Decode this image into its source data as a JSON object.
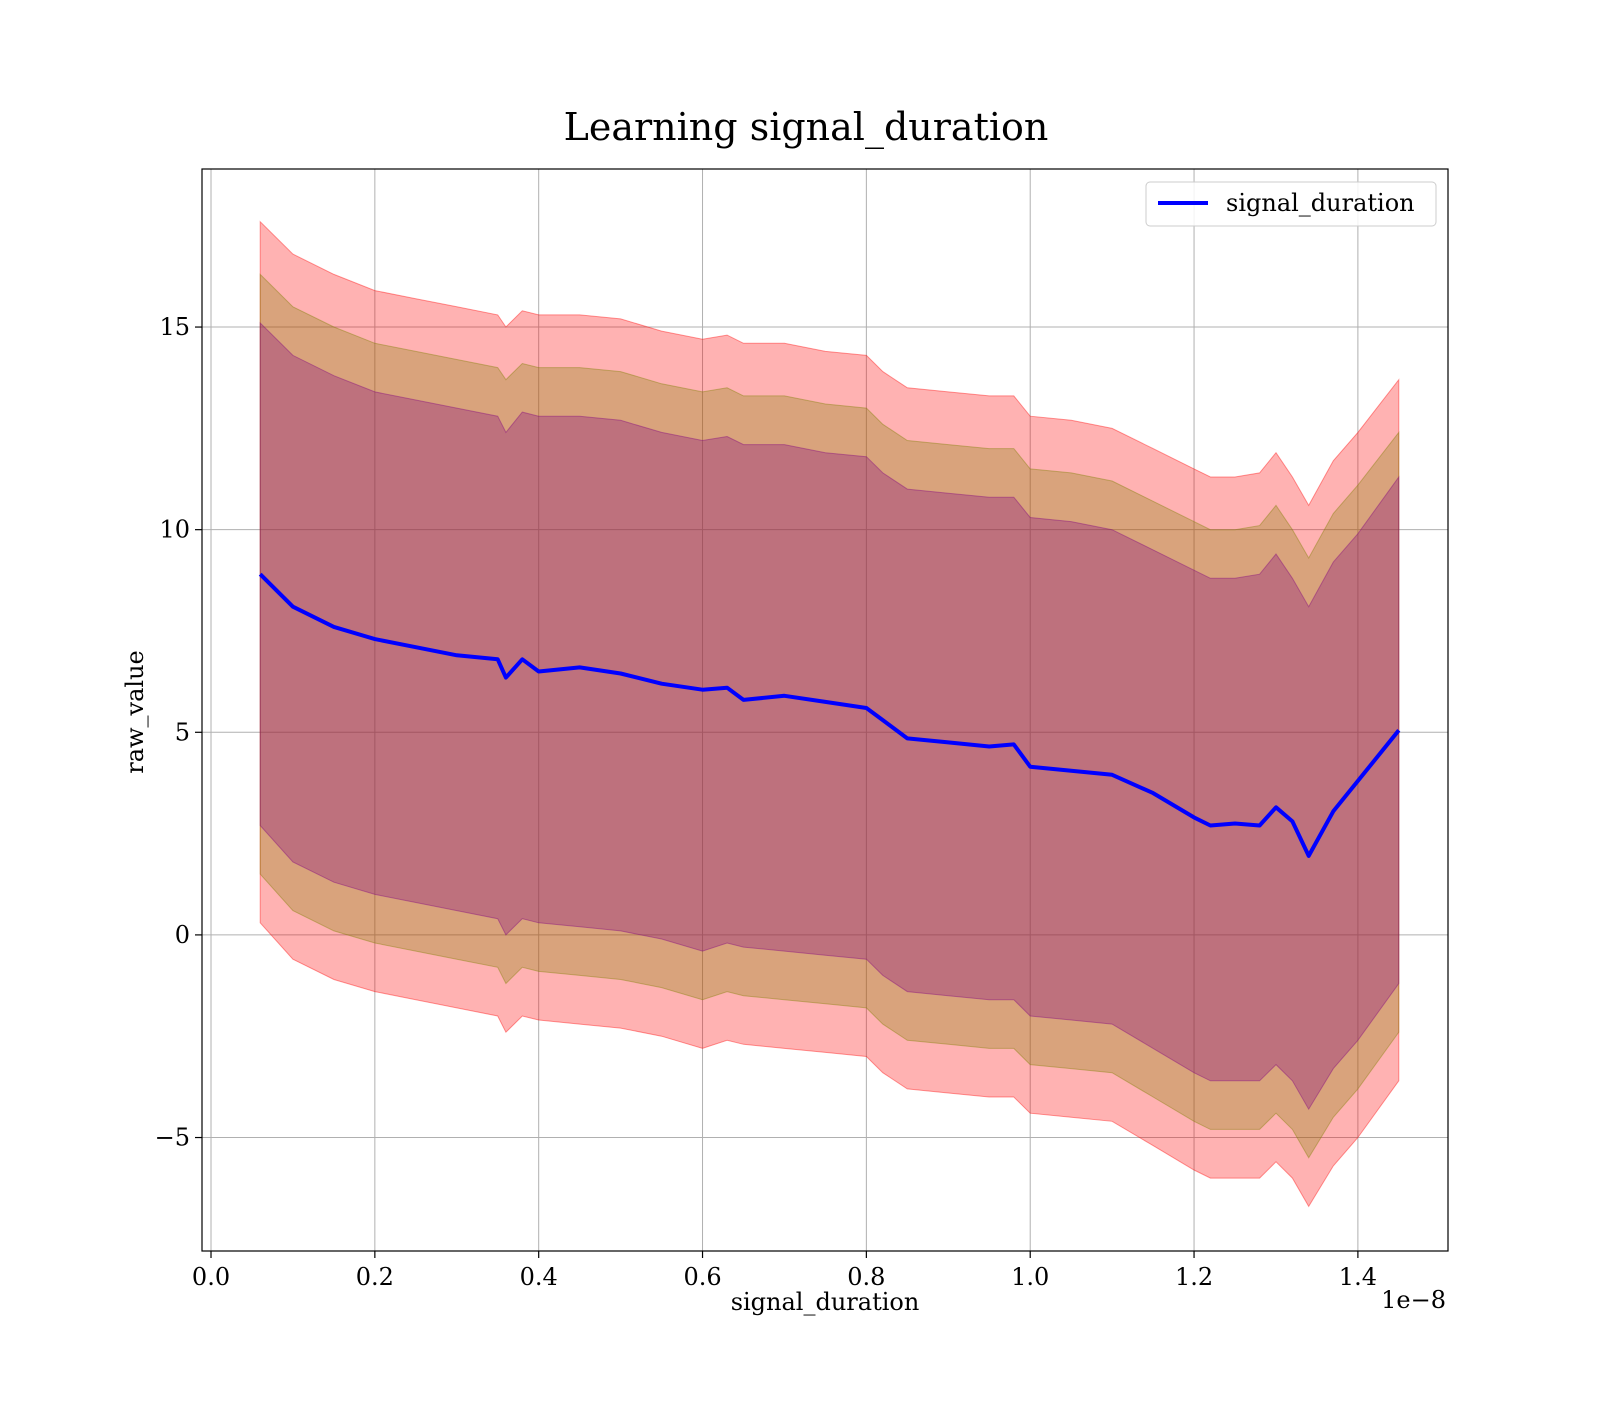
{
  "chart_data": {
    "type": "line",
    "title": "Learning signal_duration",
    "xlabel": "signal_duration",
    "ylabel": "raw_value",
    "x_offset_label": "1e−8",
    "xlim": [
      -0.011,
      1.51
    ],
    "ylim": [
      -7.8,
      18.9
    ],
    "x_ticks": [
      0.0,
      0.2,
      0.4,
      0.6,
      0.8,
      1.0,
      1.2,
      1.4
    ],
    "x_tick_labels": [
      "0.0",
      "0.2",
      "0.4",
      "0.6",
      "0.8",
      "1.0",
      "1.2",
      "1.4"
    ],
    "y_ticks": [
      -5,
      0,
      5,
      10,
      15
    ],
    "y_tick_labels": [
      "−5",
      "0",
      "5",
      "10",
      "15"
    ],
    "grid": true,
    "legend": {
      "position": "top-right",
      "entries": [
        "signal_duration"
      ]
    },
    "colors": {
      "line": "#0000ff",
      "band_outer": "#ff0000",
      "band_middle": "#808000",
      "band_inner": "#800080",
      "grid": "#b0b0b0"
    },
    "x": [
      0.06,
      0.1,
      0.15,
      0.2,
      0.25,
      0.3,
      0.35,
      0.36,
      0.38,
      0.4,
      0.45,
      0.5,
      0.55,
      0.6,
      0.63,
      0.65,
      0.7,
      0.75,
      0.8,
      0.82,
      0.85,
      0.9,
      0.95,
      0.98,
      1.0,
      1.05,
      1.1,
      1.15,
      1.2,
      1.22,
      1.25,
      1.28,
      1.3,
      1.32,
      1.34,
      1.37,
      1.4,
      1.45
    ],
    "series": [
      {
        "name": "signal_duration",
        "values": [
          8.9,
          8.1,
          7.6,
          7.3,
          7.1,
          6.9,
          6.8,
          6.35,
          6.8,
          6.5,
          6.6,
          6.45,
          6.2,
          6.05,
          6.1,
          5.8,
          5.9,
          5.75,
          5.6,
          5.3,
          4.85,
          4.75,
          4.65,
          4.7,
          4.15,
          4.05,
          3.95,
          3.5,
          2.9,
          2.7,
          2.75,
          2.7,
          3.15,
          2.8,
          1.95,
          3.05,
          3.8,
          5.05
        ]
      }
    ],
    "bands": [
      {
        "lower": [
          0.3,
          -0.6,
          -1.1,
          -1.4,
          -1.6,
          -1.8,
          -2.0,
          -2.4,
          -2.0,
          -2.1,
          -2.2,
          -2.3,
          -2.5,
          -2.8,
          -2.6,
          -2.7,
          -2.8,
          -2.9,
          -3.0,
          -3.4,
          -3.8,
          -3.9,
          -4.0,
          -4.0,
          -4.4,
          -4.5,
          -4.6,
          -5.2,
          -5.8,
          -6.0,
          -6.0,
          -6.0,
          -5.6,
          -6.0,
          -6.7,
          -5.7,
          -5.0,
          -3.6
        ],
        "upper": [
          17.6,
          16.8,
          16.3,
          15.9,
          15.7,
          15.5,
          15.3,
          15.0,
          15.4,
          15.3,
          15.3,
          15.2,
          14.9,
          14.7,
          14.8,
          14.6,
          14.6,
          14.4,
          14.3,
          13.9,
          13.5,
          13.4,
          13.3,
          13.3,
          12.8,
          12.7,
          12.5,
          12.0,
          11.5,
          11.3,
          11.3,
          11.4,
          11.9,
          11.3,
          10.6,
          11.7,
          12.4,
          13.7
        ]
      },
      {
        "lower": [
          1.5,
          0.6,
          0.1,
          -0.2,
          -0.4,
          -0.6,
          -0.8,
          -1.2,
          -0.8,
          -0.9,
          -1.0,
          -1.1,
          -1.3,
          -1.6,
          -1.4,
          -1.5,
          -1.6,
          -1.7,
          -1.8,
          -2.2,
          -2.6,
          -2.7,
          -2.8,
          -2.8,
          -3.2,
          -3.3,
          -3.4,
          -4.0,
          -4.6,
          -4.8,
          -4.8,
          -4.8,
          -4.4,
          -4.8,
          -5.5,
          -4.5,
          -3.8,
          -2.4
        ],
        "upper": [
          16.3,
          15.5,
          15.0,
          14.6,
          14.4,
          14.2,
          14.0,
          13.7,
          14.1,
          14.0,
          14.0,
          13.9,
          13.6,
          13.4,
          13.5,
          13.3,
          13.3,
          13.1,
          13.0,
          12.6,
          12.2,
          12.1,
          12.0,
          12.0,
          11.5,
          11.4,
          11.2,
          10.7,
          10.2,
          10.0,
          10.0,
          10.1,
          10.6,
          10.0,
          9.3,
          10.4,
          11.1,
          12.4
        ]
      },
      {
        "lower": [
          2.7,
          1.8,
          1.3,
          1.0,
          0.8,
          0.6,
          0.4,
          0.0,
          0.4,
          0.3,
          0.2,
          0.1,
          -0.1,
          -0.4,
          -0.2,
          -0.3,
          -0.4,
          -0.5,
          -0.6,
          -1.0,
          -1.4,
          -1.5,
          -1.6,
          -1.6,
          -2.0,
          -2.1,
          -2.2,
          -2.8,
          -3.4,
          -3.6,
          -3.6,
          -3.6,
          -3.2,
          -3.6,
          -4.3,
          -3.3,
          -2.6,
          -1.2
        ],
        "upper": [
          15.1,
          14.3,
          13.8,
          13.4,
          13.2,
          13.0,
          12.8,
          12.4,
          12.9,
          12.8,
          12.8,
          12.7,
          12.4,
          12.2,
          12.3,
          12.1,
          12.1,
          11.9,
          11.8,
          11.4,
          11.0,
          10.9,
          10.8,
          10.8,
          10.3,
          10.2,
          10.0,
          9.5,
          9.0,
          8.8,
          8.8,
          8.9,
          9.4,
          8.8,
          8.1,
          9.2,
          9.9,
          11.3
        ]
      }
    ]
  }
}
